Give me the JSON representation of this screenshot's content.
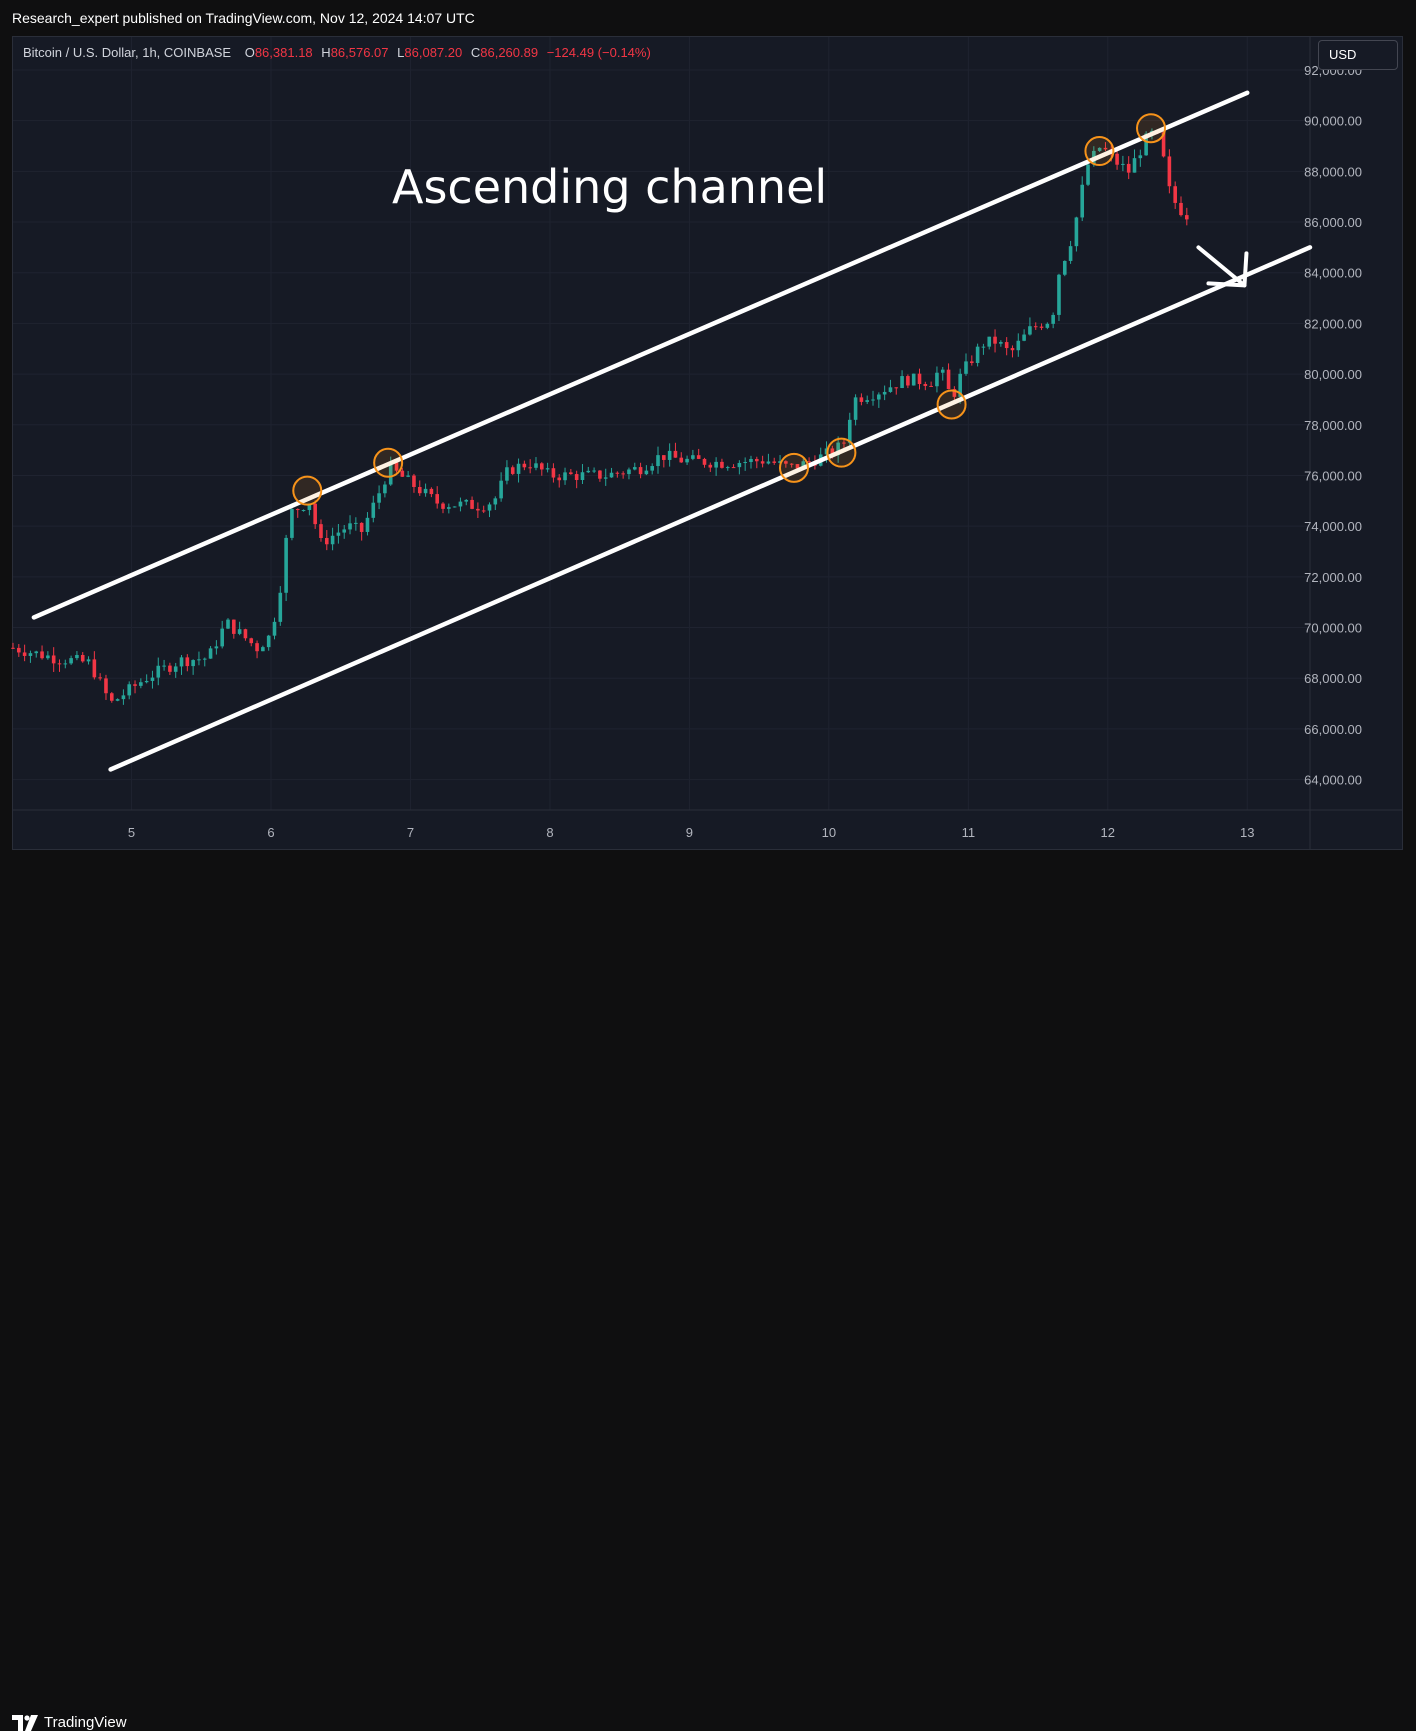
{
  "header": {
    "publish_line": "Research_expert published on TradingView.com, Nov 12, 2024 14:07 UTC"
  },
  "legend": {
    "symbol": "Bitcoin / U.S. Dollar, 1h, COINBASE",
    "open_label": "O",
    "open": "86,381.18",
    "high_label": "H",
    "high": "86,576.07",
    "low_label": "L",
    "low": "86,087.20",
    "close_label": "C",
    "close": "86,260.89",
    "change": "−124.49 (−0.14%)"
  },
  "currency_button": "USD",
  "annotation": "Ascending channel",
  "footer": {
    "brand": "TradingView"
  },
  "colors": {
    "up": "#26a69a",
    "down": "#f23645",
    "background": "#161a25",
    "marker": "#f7931a",
    "channel": "#ffffff"
  },
  "chart_data": {
    "type": "candlestick",
    "title": "",
    "xlabel": "",
    "ylabel": "",
    "x_ticks": [
      "5",
      "6",
      "7",
      "8",
      "9",
      "10",
      "11",
      "12",
      "13"
    ],
    "y_ticks": [
      "64,000.00",
      "66,000.00",
      "68,000.00",
      "70,000.00",
      "72,000.00",
      "74,000.00",
      "76,000.00",
      "78,000.00",
      "80,000.00",
      "82,000.00",
      "84,000.00",
      "86,000.00",
      "88,000.00",
      "90,000.00",
      "92,000.00"
    ],
    "xlim": [
      4.15,
      13.45
    ],
    "ylim": [
      62800,
      93300
    ],
    "price_path": [
      [
        4.15,
        69200
      ],
      [
        4.45,
        68800
      ],
      [
        4.7,
        68600
      ],
      [
        4.85,
        67000
      ],
      [
        5.1,
        68000
      ],
      [
        5.35,
        68700
      ],
      [
        5.55,
        68800
      ],
      [
        5.68,
        70200
      ],
      [
        5.9,
        69200
      ],
      [
        6.0,
        69700
      ],
      [
        6.08,
        72000
      ],
      [
        6.13,
        74500
      ],
      [
        6.28,
        75000
      ],
      [
        6.35,
        73300
      ],
      [
        6.55,
        74000
      ],
      [
        6.65,
        73800
      ],
      [
        6.75,
        75000
      ],
      [
        6.85,
        76300
      ],
      [
        7.0,
        75700
      ],
      [
        7.2,
        74900
      ],
      [
        7.5,
        74800
      ],
      [
        7.6,
        75000
      ],
      [
        7.7,
        76200
      ],
      [
        7.85,
        76500
      ],
      [
        8.0,
        76000
      ],
      [
        8.4,
        76000
      ],
      [
        8.65,
        76300
      ],
      [
        8.8,
        76800
      ],
      [
        8.95,
        76600
      ],
      [
        9.25,
        76500
      ],
      [
        9.55,
        76600
      ],
      [
        9.72,
        76300
      ],
      [
        9.85,
        76500
      ],
      [
        10.05,
        77000
      ],
      [
        10.12,
        77400
      ],
      [
        10.17,
        79000
      ],
      [
        10.35,
        79300
      ],
      [
        10.55,
        79800
      ],
      [
        10.73,
        79700
      ],
      [
        10.8,
        80200
      ],
      [
        10.88,
        79000
      ],
      [
        10.95,
        80000
      ],
      [
        11.1,
        81200
      ],
      [
        11.2,
        81300
      ],
      [
        11.3,
        80800
      ],
      [
        11.45,
        81800
      ],
      [
        11.6,
        82200
      ],
      [
        11.65,
        84000
      ],
      [
        11.75,
        85500
      ],
      [
        11.85,
        88200
      ],
      [
        11.95,
        89000
      ],
      [
        12.05,
        88400
      ],
      [
        12.15,
        88000
      ],
      [
        12.3,
        89500
      ],
      [
        12.37,
        89300
      ],
      [
        12.45,
        87000
      ],
      [
        12.55,
        86300
      ],
      [
        12.6,
        86260
      ]
    ],
    "channel_lines": [
      {
        "name": "",
        "from": [
          4.3,
          70400
        ],
        "to": [
          13.0,
          91100
        ]
      },
      {
        "name": "",
        "from": [
          4.85,
          64400
        ],
        "to": [
          13.45,
          85000
        ]
      }
    ],
    "touch_points": [
      [
        6.26,
        75400
      ],
      [
        6.84,
        76500
      ],
      [
        9.75,
        76300
      ],
      [
        10.09,
        76900
      ],
      [
        10.88,
        78800
      ],
      [
        11.94,
        88800
      ],
      [
        12.31,
        89700
      ]
    ],
    "arrow": {
      "from": [
        12.65,
        85000
      ],
      "to": [
        12.98,
        83500
      ]
    }
  }
}
